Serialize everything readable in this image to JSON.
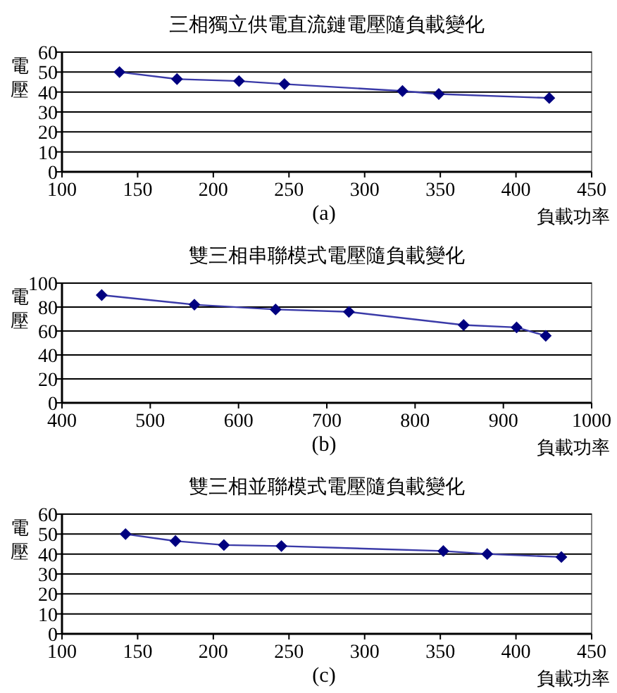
{
  "chart_data": [
    {
      "type": "line",
      "title": "三相獨立供電直流鏈電壓隨負載變化",
      "xlabel": "負載功率",
      "ylabel": "電壓",
      "annotations": [
        "(a)"
      ],
      "marker": "diamond",
      "grid": "y",
      "xlim": [
        100,
        450
      ],
      "xticks": [
        100,
        150,
        200,
        250,
        300,
        350,
        400,
        450
      ],
      "ylim": [
        0,
        60
      ],
      "yticks": [
        0,
        10,
        20,
        30,
        40,
        50,
        60
      ],
      "series": [
        {
          "color": "#000080",
          "x": [
            138,
            176,
            217,
            247,
            325,
            349,
            422
          ],
          "values": [
            50,
            46.5,
            45.5,
            44,
            40.5,
            39,
            37
          ]
        }
      ]
    },
    {
      "type": "line",
      "title": "雙三相串聯模式電壓隨負載變化",
      "xlabel": "負載功率",
      "ylabel": "電壓",
      "annotations": [
        "(b)"
      ],
      "marker": "diamond",
      "grid": "y",
      "xlim": [
        400,
        1000
      ],
      "xticks": [
        400,
        500,
        600,
        700,
        800,
        900,
        1000
      ],
      "ylim": [
        0,
        100
      ],
      "yticks": [
        0,
        20,
        40,
        60,
        80,
        100
      ],
      "series": [
        {
          "color": "#000080",
          "x": [
            445,
            550,
            642,
            725,
            855,
            915,
            948
          ],
          "values": [
            90,
            82,
            78,
            76,
            65,
            63,
            56
          ]
        }
      ]
    },
    {
      "type": "line",
      "title": "雙三相並聯模式電壓隨負載變化",
      "xlabel": "負載功率",
      "ylabel": "電壓",
      "annotations": [
        "(c)"
      ],
      "marker": "diamond",
      "grid": "y",
      "xlim": [
        100,
        450
      ],
      "xticks": [
        100,
        150,
        200,
        250,
        300,
        350,
        400,
        450
      ],
      "ylim": [
        0,
        60
      ],
      "yticks": [
        0,
        10,
        20,
        30,
        40,
        50,
        60
      ],
      "series": [
        {
          "color": "#000080",
          "x": [
            142,
            175,
            207,
            245,
            352,
            381,
            430
          ],
          "values": [
            50,
            46.5,
            44.5,
            44,
            41.5,
            40,
            38.5
          ]
        }
      ]
    }
  ]
}
